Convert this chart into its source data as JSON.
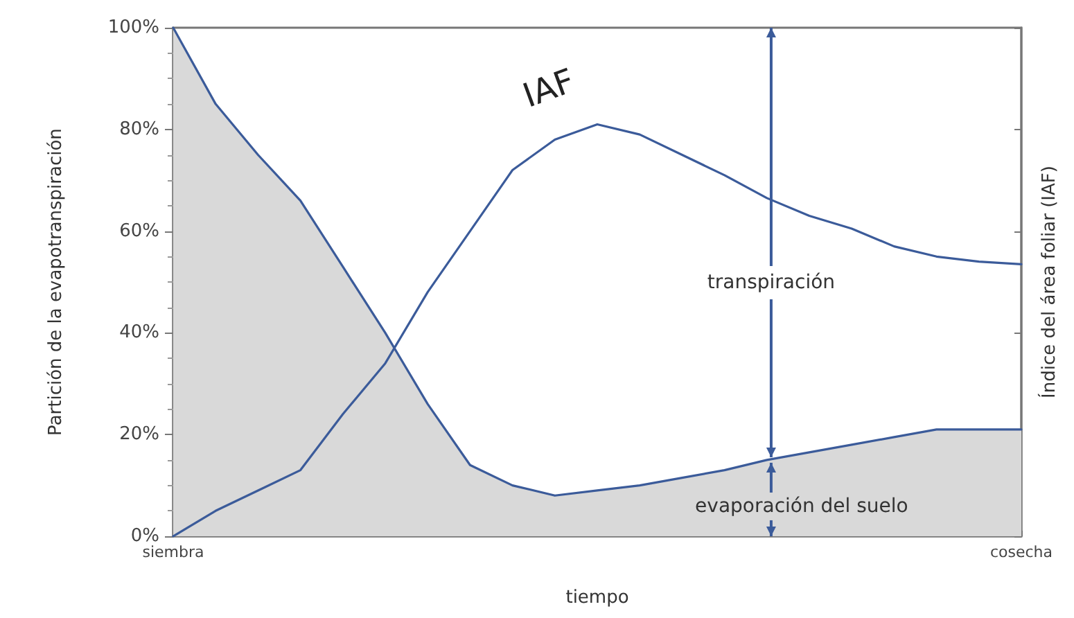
{
  "chart_data": {
    "type": "area",
    "ylabel": "Partición de la evapotranspiración",
    "y2label": "Índice del área foliar (IAF)",
    "xlabel": "tiempo",
    "categories": [
      "siembra",
      null,
      null,
      null,
      null,
      null,
      null,
      null,
      null,
      null,
      null,
      null,
      null,
      null,
      null,
      null,
      null,
      null,
      null,
      null,
      "cosecha"
    ],
    "series": [
      {
        "color": "#3b5b9a",
        "values": [
          100,
          85,
          75,
          66,
          53,
          40,
          26,
          14,
          10,
          8,
          9,
          10,
          11.5,
          13,
          15,
          16.5,
          18,
          19.5,
          21,
          21,
          21
        ]
      },
      {
        "type": "line",
        "name": "IAF",
        "color": "#3b5b9a",
        "values": [
          0,
          5,
          9,
          13,
          24,
          34,
          48,
          60,
          72,
          78,
          81,
          79,
          75,
          71,
          66.5,
          63,
          60.5,
          57,
          55,
          54,
          53.5
        ]
      }
    ],
    "ylim": [
      0,
      100
    ],
    "yticks": [
      {
        "value": 0,
        "label": "0%"
      },
      {
        "value": 20,
        "label": "20%"
      },
      {
        "value": 40,
        "label": "40%"
      },
      {
        "value": 60,
        "label": "60%"
      },
      {
        "value": 80,
        "label": "80%"
      },
      {
        "value": 100,
        "label": "100%"
      }
    ],
    "annotations": [
      {
        "text": "transpiración",
        "y": 15
      },
      {
        "text": "evaporación del suelo",
        "y": 15
      }
    ],
    "grid": false,
    "legend": false,
    "marker": "none",
    "line_style": "solid"
  }
}
